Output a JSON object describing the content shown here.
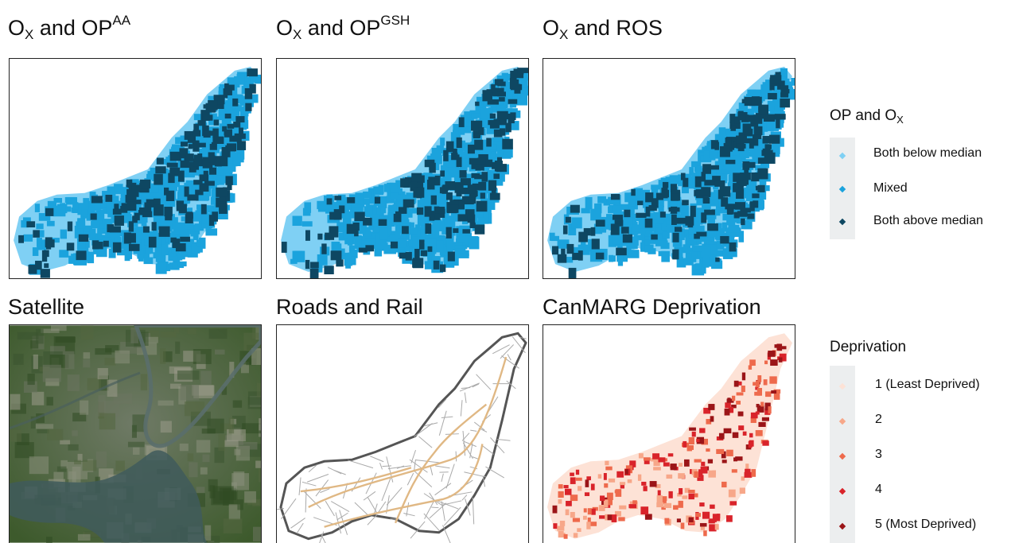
{
  "panels": {
    "p1": {
      "title_main": "O",
      "title_sub": "X",
      "title_mid": " and OP",
      "title_sup": "AA"
    },
    "p2": {
      "title_main": "O",
      "title_sub": "X",
      "title_mid": " and OP",
      "title_sup": "GSH"
    },
    "p3": {
      "title_main": "O",
      "title_sub": "X",
      "title_mid": " and ROS"
    },
    "p4": {
      "title": "Satellite"
    },
    "p5": {
      "title": "Roads and Rail"
    },
    "p6": {
      "title": "CanMARG Deprivation"
    }
  },
  "legend_op": {
    "title_main": "OP and O",
    "title_sub": "X",
    "items": [
      {
        "label": "Both below median",
        "color": "#7fd0f4"
      },
      {
        "label": "Mixed",
        "color": "#1ba3dd"
      },
      {
        "label": "Both above median",
        "color": "#0e4762"
      }
    ]
  },
  "legend_dep": {
    "title": "Deprivation",
    "items": [
      {
        "label": "1 (Least Deprived)",
        "color": "#fde2d6"
      },
      {
        "label": "2",
        "color": "#f7a789"
      },
      {
        "label": "3",
        "color": "#ee6a4c"
      },
      {
        "label": "4",
        "color": "#d9232a"
      },
      {
        "label": "5 (Most Deprived)",
        "color": "#9b1518"
      }
    ]
  }
}
